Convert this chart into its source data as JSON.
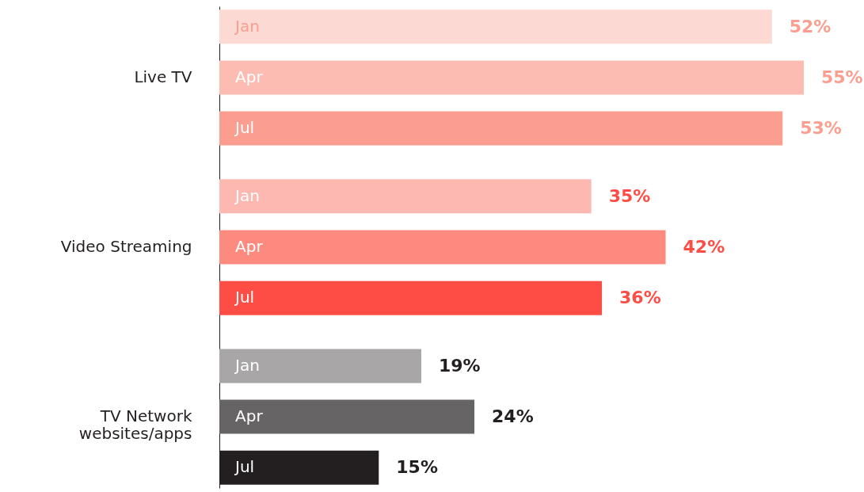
{
  "chart_data": {
    "type": "bar",
    "orientation": "horizontal",
    "categories": [
      "Live TV",
      "Video Streaming",
      "TV Network websites/apps"
    ],
    "series": [
      {
        "name": "Jan",
        "colors": [
          "#fdd9d4",
          "#fcb8b1",
          "#a8a6a6"
        ],
        "values": [
          52,
          35,
          19
        ],
        "value_labels": [
          "52%",
          "35%",
          "19%"
        ]
      },
      {
        "name": "Apr",
        "colors": [
          "#fcbcb2",
          "#fd8a7f",
          "#666464"
        ],
        "values": [
          55,
          42,
          24
        ],
        "value_labels": [
          "55%",
          "42%",
          "24%"
        ]
      },
      {
        "name": "Jul",
        "colors": [
          "#fb9e90",
          "#fe4d45",
          "#231f20"
        ],
        "values": [
          53,
          36,
          15
        ],
        "value_labels": [
          "53%",
          "36%",
          "15%"
        ]
      }
    ]
  }
}
